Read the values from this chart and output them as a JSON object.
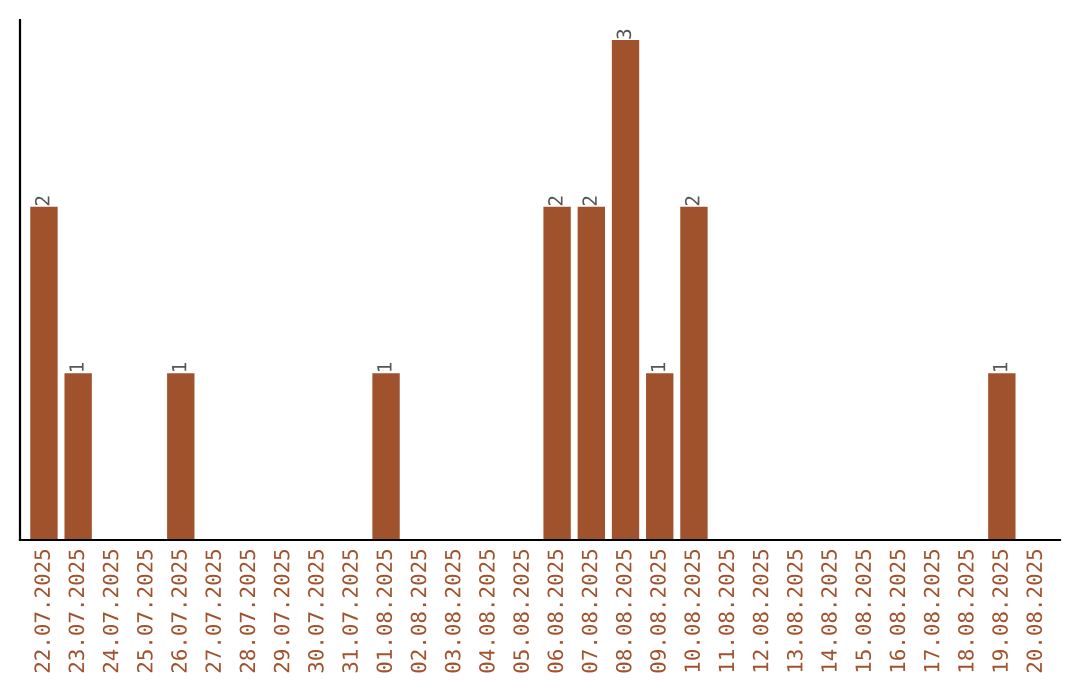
{
  "chart_data": {
    "type": "bar",
    "categories": [
      "22.07.2025",
      "23.07.2025",
      "24.07.2025",
      "25.07.2025",
      "26.07.2025",
      "27.07.2025",
      "28.07.2025",
      "29.07.2025",
      "30.07.2025",
      "31.07.2025",
      "01.08.2025",
      "02.08.2025",
      "03.08.2025",
      "04.08.2025",
      "05.08.2025",
      "06.08.2025",
      "07.08.2025",
      "08.08.2025",
      "09.08.2025",
      "10.08.2025",
      "11.08.2025",
      "12.08.2025",
      "13.08.2025",
      "14.08.2025",
      "15.08.2025",
      "16.08.2025",
      "17.08.2025",
      "18.08.2025",
      "19.08.2025",
      "20.08.2025"
    ],
    "values": [
      2,
      1,
      0,
      0,
      1,
      0,
      0,
      0,
      0,
      0,
      1,
      0,
      0,
      0,
      0,
      2,
      2,
      3,
      1,
      2,
      0,
      0,
      0,
      0,
      0,
      0,
      0,
      0,
      1,
      0
    ],
    "value_labels": [
      "2",
      "1",
      null,
      null,
      "1",
      null,
      null,
      null,
      null,
      null,
      "1",
      null,
      null,
      null,
      null,
      "2",
      "2",
      "3",
      "1",
      "2",
      null,
      null,
      null,
      null,
      null,
      null,
      null,
      null,
      "1",
      null
    ],
    "color": "#a0522d",
    "grid": false,
    "legend": false
  }
}
